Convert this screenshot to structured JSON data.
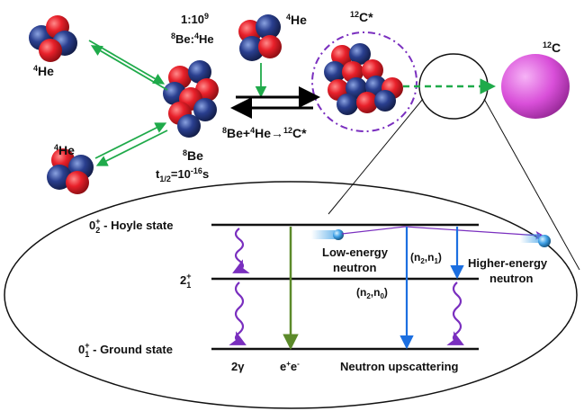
{
  "top": {
    "he4_top_left": "4He",
    "he4_bottom_left": "4He",
    "he4_incoming": "4He",
    "ratio_line1": "1:10",
    "ratio_exp": "9",
    "ratio_line2_base": "Be:",
    "ratio_line2_he": "He",
    "be8": "Be",
    "be8_sup": "8",
    "halflife_t": "t",
    "halflife_sub": "1/2",
    "halflife_eq": "=10",
    "halflife_exp": "-16",
    "halflife_unit": "s",
    "reaction_label": "Be+ He→ C*",
    "c12_star": "C*",
    "c12_star_sup": "12",
    "c12": "C",
    "c12_sup": "12"
  },
  "levels": {
    "hoyle": "0",
    "hoyle_sub": "2",
    "hoyle_sup": "+",
    "hoyle_name": " - Hoyle state",
    "two_plus": "2",
    "two_plus_sub": "1",
    "two_plus_sup": "+",
    "ground": "0",
    "ground_sub": "1",
    "ground_sup": "+",
    "ground_name": " - Ground state"
  },
  "decays": {
    "gamma": "2γ",
    "pair_e": "e",
    "pair_plus": "+",
    "pair_e2": "e",
    "pair_minus": "-",
    "low_neutron_1": "Low-energy",
    "low_neutron_2": "neutron",
    "high_neutron_1": "Higher-energy",
    "high_neutron_2": "neutron",
    "n2n1_a": "(n",
    "n2n1_b": "2",
    "n2n1_c": ",n",
    "n2n1_d": "1",
    "n2n1_e": ")",
    "n2n0_a": "(n",
    "n2n0_b": "2",
    "n2n0_c": ",n",
    "n2n0_d": "0",
    "n2n0_e": ")",
    "upscattering": "Neutron upscattering"
  },
  "colors": {
    "proton": "#e8202a",
    "neutron": "#2a3f8f",
    "green_arrow": "#1faa4a",
    "purple": "#7a2fbf",
    "blue": "#1c6fe0",
    "olive": "#5c8a2a",
    "c12_sphere": "#d94fd9"
  }
}
